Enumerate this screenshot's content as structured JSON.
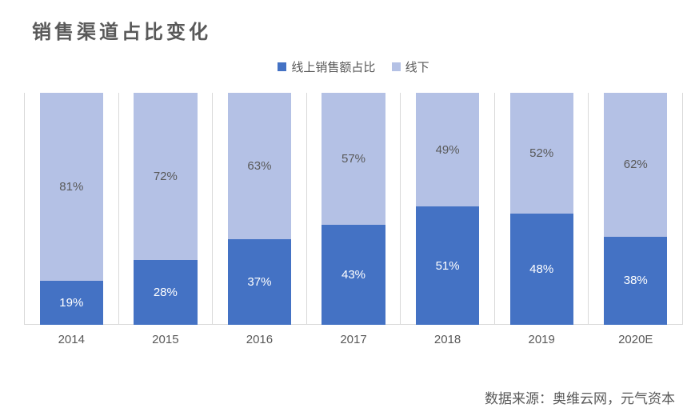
{
  "chart": {
    "type": "stacked-bar-100",
    "title": "销售渠道占比变化",
    "title_fontsize": 24,
    "title_color": "#595959",
    "title_letter_spacing": 4,
    "background_color": "#ffffff",
    "legend": {
      "position": "top-center",
      "fontsize": 15,
      "color": "#595959",
      "items": [
        {
          "label": "线上销售额占比",
          "color": "#4472c4"
        },
        {
          "label": "线下",
          "color": "#b4c1e5"
        }
      ]
    },
    "categories": [
      "2014",
      "2015",
      "2016",
      "2017",
      "2018",
      "2019",
      "2020E"
    ],
    "series": [
      {
        "name": "online",
        "color": "#4472c4",
        "label_color": "#ffffff",
        "values": [
          19,
          28,
          37,
          43,
          51,
          48,
          38
        ]
      },
      {
        "name": "offline",
        "color": "#b4c1e5",
        "label_color": "#595959",
        "values": [
          81,
          72,
          63,
          57,
          49,
          52,
          62
        ]
      }
    ],
    "bar_width_pct": 68,
    "ylim": [
      0,
      100
    ],
    "grid": {
      "vertical": true,
      "horizontal": false,
      "color": "#d9d9d9"
    },
    "axis_label_fontsize": 15,
    "axis_label_color": "#595959",
    "data_label_fontsize": 15,
    "data_label_suffix": "%",
    "source_note": "数据来源：奥维云网，元气资本",
    "source_fontsize": 17,
    "source_color": "#595959"
  }
}
